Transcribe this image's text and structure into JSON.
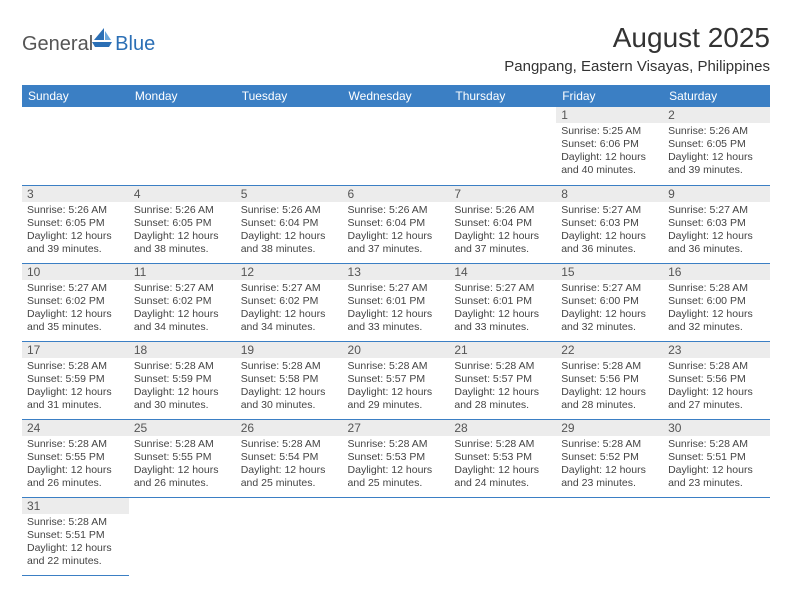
{
  "logo": {
    "dark": "General",
    "blue": "Blue"
  },
  "title": "August 2025",
  "subtitle": "Pangpang, Eastern Visayas, Philippines",
  "header_color": "#3b7fc4",
  "daynum_bg": "#ececec",
  "days": [
    "Sunday",
    "Monday",
    "Tuesday",
    "Wednesday",
    "Thursday",
    "Friday",
    "Saturday"
  ],
  "weeks": [
    [
      null,
      null,
      null,
      null,
      null,
      {
        "n": "1",
        "sr": "Sunrise: 5:25 AM",
        "ss": "Sunset: 6:06 PM",
        "d1": "Daylight: 12 hours",
        "d2": "and 40 minutes."
      },
      {
        "n": "2",
        "sr": "Sunrise: 5:26 AM",
        "ss": "Sunset: 6:05 PM",
        "d1": "Daylight: 12 hours",
        "d2": "and 39 minutes."
      }
    ],
    [
      {
        "n": "3",
        "sr": "Sunrise: 5:26 AM",
        "ss": "Sunset: 6:05 PM",
        "d1": "Daylight: 12 hours",
        "d2": "and 39 minutes."
      },
      {
        "n": "4",
        "sr": "Sunrise: 5:26 AM",
        "ss": "Sunset: 6:05 PM",
        "d1": "Daylight: 12 hours",
        "d2": "and 38 minutes."
      },
      {
        "n": "5",
        "sr": "Sunrise: 5:26 AM",
        "ss": "Sunset: 6:04 PM",
        "d1": "Daylight: 12 hours",
        "d2": "and 38 minutes."
      },
      {
        "n": "6",
        "sr": "Sunrise: 5:26 AM",
        "ss": "Sunset: 6:04 PM",
        "d1": "Daylight: 12 hours",
        "d2": "and 37 minutes."
      },
      {
        "n": "7",
        "sr": "Sunrise: 5:26 AM",
        "ss": "Sunset: 6:04 PM",
        "d1": "Daylight: 12 hours",
        "d2": "and 37 minutes."
      },
      {
        "n": "8",
        "sr": "Sunrise: 5:27 AM",
        "ss": "Sunset: 6:03 PM",
        "d1": "Daylight: 12 hours",
        "d2": "and 36 minutes."
      },
      {
        "n": "9",
        "sr": "Sunrise: 5:27 AM",
        "ss": "Sunset: 6:03 PM",
        "d1": "Daylight: 12 hours",
        "d2": "and 36 minutes."
      }
    ],
    [
      {
        "n": "10",
        "sr": "Sunrise: 5:27 AM",
        "ss": "Sunset: 6:02 PM",
        "d1": "Daylight: 12 hours",
        "d2": "and 35 minutes."
      },
      {
        "n": "11",
        "sr": "Sunrise: 5:27 AM",
        "ss": "Sunset: 6:02 PM",
        "d1": "Daylight: 12 hours",
        "d2": "and 34 minutes."
      },
      {
        "n": "12",
        "sr": "Sunrise: 5:27 AM",
        "ss": "Sunset: 6:02 PM",
        "d1": "Daylight: 12 hours",
        "d2": "and 34 minutes."
      },
      {
        "n": "13",
        "sr": "Sunrise: 5:27 AM",
        "ss": "Sunset: 6:01 PM",
        "d1": "Daylight: 12 hours",
        "d2": "and 33 minutes."
      },
      {
        "n": "14",
        "sr": "Sunrise: 5:27 AM",
        "ss": "Sunset: 6:01 PM",
        "d1": "Daylight: 12 hours",
        "d2": "and 33 minutes."
      },
      {
        "n": "15",
        "sr": "Sunrise: 5:27 AM",
        "ss": "Sunset: 6:00 PM",
        "d1": "Daylight: 12 hours",
        "d2": "and 32 minutes."
      },
      {
        "n": "16",
        "sr": "Sunrise: 5:28 AM",
        "ss": "Sunset: 6:00 PM",
        "d1": "Daylight: 12 hours",
        "d2": "and 32 minutes."
      }
    ],
    [
      {
        "n": "17",
        "sr": "Sunrise: 5:28 AM",
        "ss": "Sunset: 5:59 PM",
        "d1": "Daylight: 12 hours",
        "d2": "and 31 minutes."
      },
      {
        "n": "18",
        "sr": "Sunrise: 5:28 AM",
        "ss": "Sunset: 5:59 PM",
        "d1": "Daylight: 12 hours",
        "d2": "and 30 minutes."
      },
      {
        "n": "19",
        "sr": "Sunrise: 5:28 AM",
        "ss": "Sunset: 5:58 PM",
        "d1": "Daylight: 12 hours",
        "d2": "and 30 minutes."
      },
      {
        "n": "20",
        "sr": "Sunrise: 5:28 AM",
        "ss": "Sunset: 5:57 PM",
        "d1": "Daylight: 12 hours",
        "d2": "and 29 minutes."
      },
      {
        "n": "21",
        "sr": "Sunrise: 5:28 AM",
        "ss": "Sunset: 5:57 PM",
        "d1": "Daylight: 12 hours",
        "d2": "and 28 minutes."
      },
      {
        "n": "22",
        "sr": "Sunrise: 5:28 AM",
        "ss": "Sunset: 5:56 PM",
        "d1": "Daylight: 12 hours",
        "d2": "and 28 minutes."
      },
      {
        "n": "23",
        "sr": "Sunrise: 5:28 AM",
        "ss": "Sunset: 5:56 PM",
        "d1": "Daylight: 12 hours",
        "d2": "and 27 minutes."
      }
    ],
    [
      {
        "n": "24",
        "sr": "Sunrise: 5:28 AM",
        "ss": "Sunset: 5:55 PM",
        "d1": "Daylight: 12 hours",
        "d2": "and 26 minutes."
      },
      {
        "n": "25",
        "sr": "Sunrise: 5:28 AM",
        "ss": "Sunset: 5:55 PM",
        "d1": "Daylight: 12 hours",
        "d2": "and 26 minutes."
      },
      {
        "n": "26",
        "sr": "Sunrise: 5:28 AM",
        "ss": "Sunset: 5:54 PM",
        "d1": "Daylight: 12 hours",
        "d2": "and 25 minutes."
      },
      {
        "n": "27",
        "sr": "Sunrise: 5:28 AM",
        "ss": "Sunset: 5:53 PM",
        "d1": "Daylight: 12 hours",
        "d2": "and 25 minutes."
      },
      {
        "n": "28",
        "sr": "Sunrise: 5:28 AM",
        "ss": "Sunset: 5:53 PM",
        "d1": "Daylight: 12 hours",
        "d2": "and 24 minutes."
      },
      {
        "n": "29",
        "sr": "Sunrise: 5:28 AM",
        "ss": "Sunset: 5:52 PM",
        "d1": "Daylight: 12 hours",
        "d2": "and 23 minutes."
      },
      {
        "n": "30",
        "sr": "Sunrise: 5:28 AM",
        "ss": "Sunset: 5:51 PM",
        "d1": "Daylight: 12 hours",
        "d2": "and 23 minutes."
      }
    ],
    [
      {
        "n": "31",
        "sr": "Sunrise: 5:28 AM",
        "ss": "Sunset: 5:51 PM",
        "d1": "Daylight: 12 hours",
        "d2": "and 22 minutes."
      },
      null,
      null,
      null,
      null,
      null,
      null
    ]
  ]
}
